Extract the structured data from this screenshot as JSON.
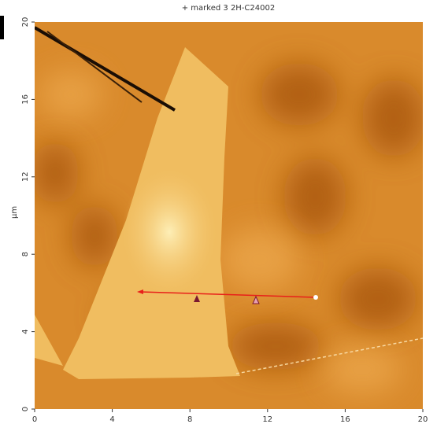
{
  "chart_data": {
    "type": "image",
    "title": "+ marked 3 2H-C24002",
    "ylabel": "µm",
    "xlim": [
      0,
      20
    ],
    "ylim": [
      0,
      20
    ],
    "xticks": [
      0,
      4,
      8,
      12,
      16,
      20
    ],
    "yticks": [
      0,
      4,
      8,
      12,
      16,
      20
    ]
  }
}
